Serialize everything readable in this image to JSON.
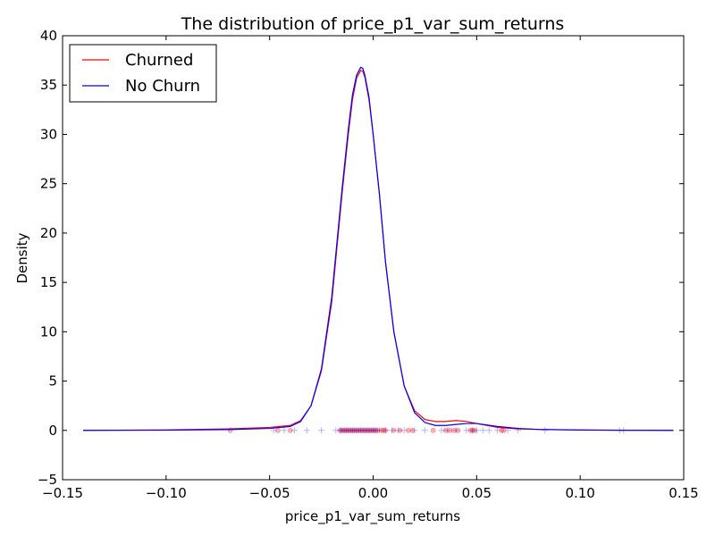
{
  "chart_data": {
    "type": "line",
    "title": "The distribution of price_p1_var_sum_returns",
    "xlabel": "price_p1_var_sum_returns",
    "ylabel": "Density",
    "xlim": [
      -0.15,
      0.15
    ],
    "ylim": [
      -5,
      40
    ],
    "xticks": [
      -0.15,
      -0.1,
      -0.05,
      0.0,
      0.05,
      0.1,
      0.15
    ],
    "xtick_labels": [
      "−0.15",
      "−0.10",
      "−0.05",
      "0.00",
      "0.05",
      "0.10",
      "0.15"
    ],
    "yticks": [
      -5,
      0,
      5,
      10,
      15,
      20,
      25,
      30,
      35,
      40
    ],
    "ytick_labels": [
      "−5",
      "0",
      "5",
      "10",
      "15",
      "20",
      "25",
      "30",
      "35",
      "40"
    ],
    "grid": false,
    "legend_position": "top-left",
    "series": [
      {
        "name": "Churned",
        "color": "#ff0000",
        "x": [
          -0.14,
          -0.1,
          -0.07,
          -0.05,
          -0.04,
          -0.035,
          -0.03,
          -0.025,
          -0.02,
          -0.015,
          -0.012,
          -0.01,
          -0.008,
          -0.006,
          -0.005,
          -0.004,
          -0.002,
          0.0,
          0.003,
          0.006,
          0.01,
          0.015,
          0.02,
          0.025,
          0.03,
          0.035,
          0.04,
          0.045,
          0.05,
          0.06,
          0.07,
          0.08,
          0.1,
          0.12,
          0.145
        ],
        "y": [
          0.0,
          0.05,
          0.15,
          0.3,
          0.5,
          1.0,
          2.5,
          6.0,
          13.0,
          24.0,
          30.0,
          33.5,
          35.7,
          36.5,
          36.4,
          35.8,
          33.5,
          30.0,
          24.0,
          17.0,
          10.0,
          4.5,
          2.0,
          1.1,
          0.9,
          0.9,
          1.0,
          0.9,
          0.7,
          0.3,
          0.15,
          0.1,
          0.05,
          0.02,
          0.0
        ],
        "rug_marker": "circle",
        "rug_x": [
          -0.069,
          -0.046,
          -0.04,
          -0.016,
          -0.015,
          -0.014,
          -0.013,
          -0.012,
          -0.011,
          -0.01,
          -0.009,
          -0.008,
          -0.007,
          -0.006,
          -0.005,
          -0.004,
          -0.003,
          -0.002,
          -0.001,
          0.0,
          0.001,
          0.002,
          0.004,
          0.005,
          0.006,
          0.01,
          0.013,
          0.017,
          0.019,
          0.029,
          0.035,
          0.037,
          0.039,
          0.041,
          0.047,
          0.048,
          0.049,
          0.062,
          0.063
        ]
      },
      {
        "name": "No Churn",
        "color": "#0000ff",
        "x": [
          -0.14,
          -0.1,
          -0.07,
          -0.05,
          -0.04,
          -0.035,
          -0.03,
          -0.025,
          -0.02,
          -0.015,
          -0.012,
          -0.01,
          -0.008,
          -0.006,
          -0.005,
          -0.004,
          -0.002,
          0.0,
          0.003,
          0.006,
          0.01,
          0.015,
          0.02,
          0.025,
          0.03,
          0.035,
          0.04,
          0.045,
          0.05,
          0.06,
          0.07,
          0.08,
          0.1,
          0.12,
          0.145
        ],
        "y": [
          0.0,
          0.02,
          0.08,
          0.2,
          0.4,
          0.9,
          2.5,
          6.2,
          13.5,
          24.5,
          30.5,
          34.0,
          36.0,
          36.8,
          36.7,
          36.0,
          33.8,
          30.0,
          24.0,
          17.0,
          10.0,
          4.5,
          1.8,
          0.8,
          0.5,
          0.5,
          0.6,
          0.7,
          0.7,
          0.4,
          0.2,
          0.1,
          0.03,
          0.01,
          0.0
        ],
        "rug_marker": "plus",
        "rug_x": [
          -0.048,
          -0.043,
          -0.038,
          -0.032,
          -0.025,
          -0.018,
          -0.016,
          -0.015,
          -0.014,
          -0.013,
          -0.012,
          -0.011,
          -0.01,
          -0.009,
          -0.008,
          -0.007,
          -0.006,
          -0.005,
          -0.004,
          -0.003,
          -0.002,
          -0.001,
          0.0,
          0.001,
          0.002,
          0.003,
          0.006,
          0.009,
          0.012,
          0.015,
          0.02,
          0.025,
          0.033,
          0.036,
          0.04,
          0.045,
          0.048,
          0.05,
          0.053,
          0.056,
          0.06,
          0.065,
          0.07,
          0.083,
          0.119,
          0.121
        ]
      }
    ]
  }
}
